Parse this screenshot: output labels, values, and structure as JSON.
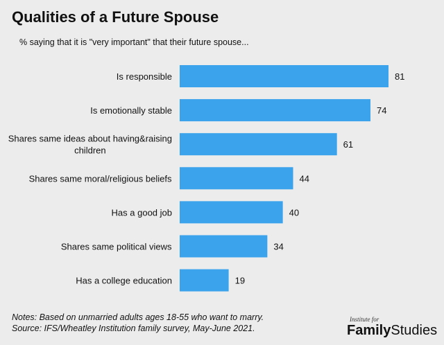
{
  "header": {
    "title": "Qualities of a Future Spouse",
    "subtitle": "% saying that it is \"very important\" that their future spouse..."
  },
  "chart_data": {
    "type": "bar",
    "orientation": "horizontal",
    "categories": [
      [
        "Is responsible"
      ],
      [
        "Is emotionally stable"
      ],
      [
        "Shares same ideas about having&raising",
        "children"
      ],
      [
        "Shares same moral/religious beliefs"
      ],
      [
        "Has a good job"
      ],
      [
        "Shares same political views"
      ],
      [
        "Has a college education"
      ]
    ],
    "values": [
      81,
      74,
      61,
      44,
      40,
      34,
      19
    ],
    "bar_color": "#3ba3ec",
    "grid": false,
    "xlim": [
      0,
      81
    ]
  },
  "footer": {
    "notes": "Notes: Based on unmarried adults ages 18-55 who want to marry.",
    "source": "Source: IFS/Wheatley Institution family survey, May-June 2021."
  },
  "logo": {
    "small": "Institute for",
    "family": "Family",
    "studies": "Studies"
  }
}
